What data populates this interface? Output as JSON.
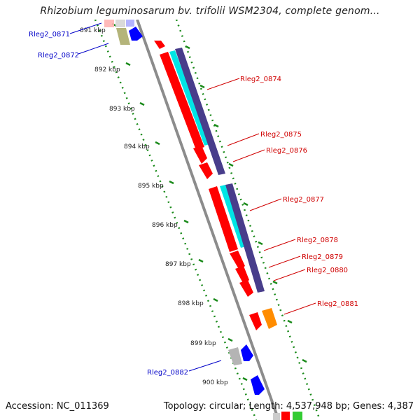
{
  "title": "Rhizobium leguminosarum bv. trifolii WSM2304, complete genom...",
  "footer": {
    "accession": "Accession: NC_011369",
    "summary": "Topology: circular; Length: 4,537,948 bp; Genes: 4,387"
  },
  "ruler": {
    "unit": "kbp",
    "ticks": [
      {
        "label": "891 kbp"
      },
      {
        "label": "892 kbp"
      },
      {
        "label": "893 kbp"
      },
      {
        "label": "894 kbp"
      },
      {
        "label": "895 kbp"
      },
      {
        "label": "896 kbp"
      },
      {
        "label": "897 kbp"
      },
      {
        "label": "898 kbp"
      },
      {
        "label": "899 kbp"
      },
      {
        "label": "900 kbp"
      }
    ]
  },
  "gene_labels": [
    {
      "text": "Rleg2_0871",
      "strand": "reverse",
      "color": "#0000c8"
    },
    {
      "text": "Rleg2_0872",
      "strand": "reverse",
      "color": "#0000c8"
    },
    {
      "text": "Rleg2_0874",
      "strand": "forward",
      "color": "#d00000"
    },
    {
      "text": "Rleg2_0875",
      "strand": "forward",
      "color": "#d00000"
    },
    {
      "text": "Rleg2_0876",
      "strand": "forward",
      "color": "#d00000"
    },
    {
      "text": "Rleg2_0877",
      "strand": "forward",
      "color": "#d00000"
    },
    {
      "text": "Rleg2_0878",
      "strand": "forward",
      "color": "#d00000"
    },
    {
      "text": "Rleg2_0879",
      "strand": "forward",
      "color": "#d00000"
    },
    {
      "text": "Rleg2_0880",
      "strand": "forward",
      "color": "#d00000"
    },
    {
      "text": "Rleg2_0881",
      "strand": "forward",
      "color": "#d00000"
    },
    {
      "text": "Rleg2_0882",
      "strand": "reverse",
      "color": "#0000c8"
    }
  ],
  "colors": {
    "backbone": "#8c8c8c",
    "ruler": "#1a8a1a",
    "cds_forward": "#ff0000",
    "cds_reverse": "#0000ff",
    "gene_track": "#483d8b",
    "rna_track": "#00e5e5",
    "orange_feature": "#ff8c00",
    "grey_feature": "#b4b4b4",
    "olive_feature": "#b4b47a"
  }
}
